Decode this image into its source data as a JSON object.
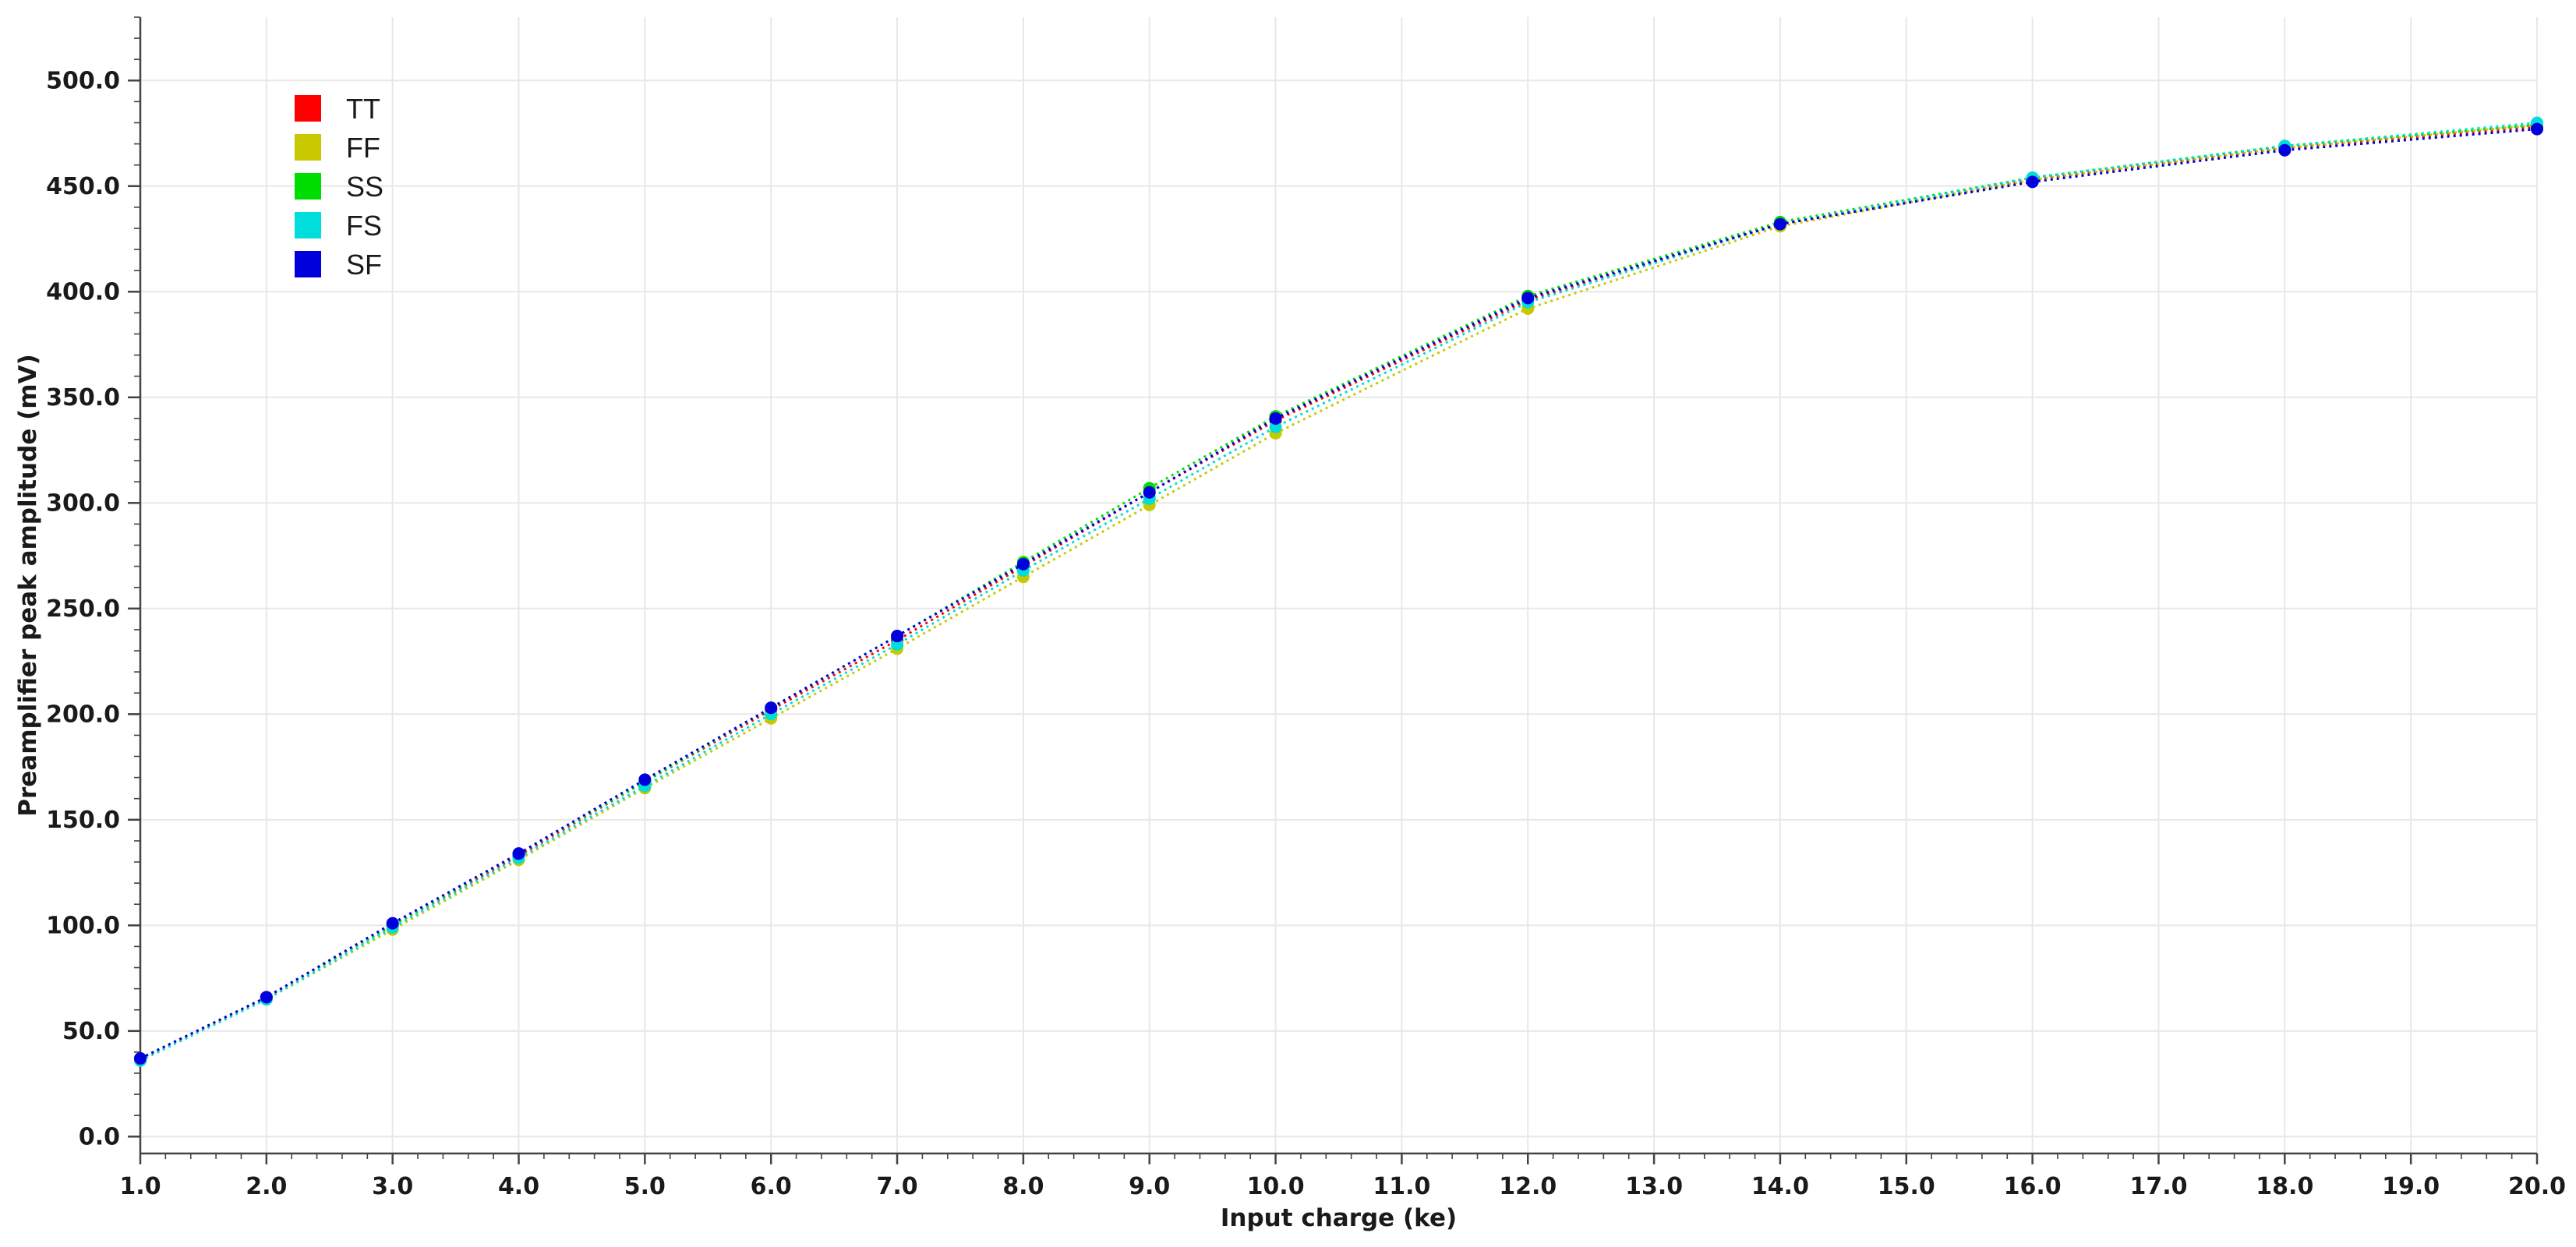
{
  "chart_data": {
    "type": "line",
    "title": "",
    "xlabel": "Input charge (ke)",
    "ylabel": "Preamplifier peak amplitude (mV)",
    "xlim": [
      1.0,
      20.0
    ],
    "ylim": [
      -8,
      530
    ],
    "x_ticks": [
      "1.0",
      "2.0",
      "3.0",
      "4.0",
      "5.0",
      "6.0",
      "7.0",
      "8.0",
      "9.0",
      "10.0",
      "11.0",
      "12.0",
      "13.0",
      "14.0",
      "15.0",
      "16.0",
      "17.0",
      "18.0",
      "19.0",
      "20.0"
    ],
    "y_ticks": [
      "0.0",
      "50.0",
      "100.0",
      "150.0",
      "200.0",
      "250.0",
      "300.0",
      "350.0",
      "400.0",
      "450.0",
      "500.0"
    ],
    "grid": true,
    "legend_position": "top-left",
    "x": [
      1,
      2,
      3,
      4,
      5,
      6,
      7,
      8,
      9,
      10,
      12,
      14,
      16,
      18,
      20
    ],
    "series": [
      {
        "name": "TT",
        "color": "#ff0000",
        "values": [
          37,
          66,
          100,
          133,
          168,
          202,
          235,
          270,
          305,
          339,
          396,
          432,
          453,
          468,
          478
        ]
      },
      {
        "name": "FF",
        "color": "#c8c800",
        "values": [
          36,
          65,
          98,
          131,
          165,
          198,
          231,
          265,
          299,
          333,
          392,
          431,
          453,
          468,
          479
        ]
      },
      {
        "name": "SS",
        "color": "#00dd00",
        "values": [
          37,
          66,
          100,
          134,
          168,
          203,
          237,
          272,
          307,
          341,
          398,
          433,
          454,
          469,
          479
        ]
      },
      {
        "name": "FS",
        "color": "#00dddd",
        "values": [
          36,
          65,
          99,
          132,
          166,
          200,
          233,
          268,
          302,
          336,
          395,
          432,
          454,
          469,
          480
        ]
      },
      {
        "name": "SF",
        "color": "#0000dd",
        "values": [
          37,
          66,
          101,
          134,
          169,
          203,
          237,
          271,
          305,
          340,
          397,
          432,
          452,
          467,
          477
        ]
      }
    ]
  }
}
